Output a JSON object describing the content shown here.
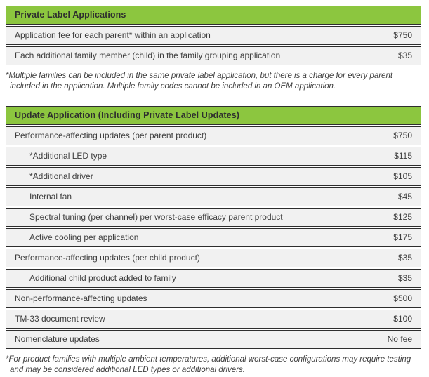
{
  "colors": {
    "header_green": "#8cc63f",
    "row_background": "#f1f1f1",
    "table_border": "#2e2e2e",
    "text_dark": "#3d3d3d"
  },
  "table1": {
    "title": "Private Label Applications",
    "rows": [
      {
        "label": "Application fee for each parent* within an application",
        "value": "$750",
        "indent": false
      },
      {
        "label": "Each additional family member (child) in the family grouping application",
        "value": "$35",
        "indent": false
      }
    ],
    "footnote": "*Multiple families can be included in the same private label application, but there is a charge for every parent included in the application. Multiple family codes cannot be included in an OEM application."
  },
  "table2": {
    "title": "Update Application (Including Private Label Updates)",
    "rows": [
      {
        "label": "Performance-affecting updates (per parent product)",
        "value": "$750",
        "indent": false
      },
      {
        "label": "*Additional LED type",
        "value": "$115",
        "indent": true
      },
      {
        "label": "*Additional driver",
        "value": "$105",
        "indent": true
      },
      {
        "label": "Internal fan",
        "value": "$45",
        "indent": true
      },
      {
        "label": "Spectral tuning (per channel) per worst-case efficacy parent product",
        "value": "$125",
        "indent": true
      },
      {
        "label": "Active cooling per application",
        "value": "$175",
        "indent": true
      },
      {
        "label": "Performance-affecting updates (per child product)",
        "value": "$35",
        "indent": false
      },
      {
        "label": "Additional child product added to family",
        "value": "$35",
        "indent": true
      },
      {
        "label": "Non-performance-affecting updates",
        "value": "$500",
        "indent": false
      },
      {
        "label": "TM-33 document review",
        "value": "$100",
        "indent": false
      },
      {
        "label": "Nomenclature updates",
        "value": "No fee",
        "indent": false
      }
    ],
    "footnote": "*For product families with multiple ambient temperatures, additional worst-case configurations may require testing and may be considered additional LED types or additional drivers."
  }
}
